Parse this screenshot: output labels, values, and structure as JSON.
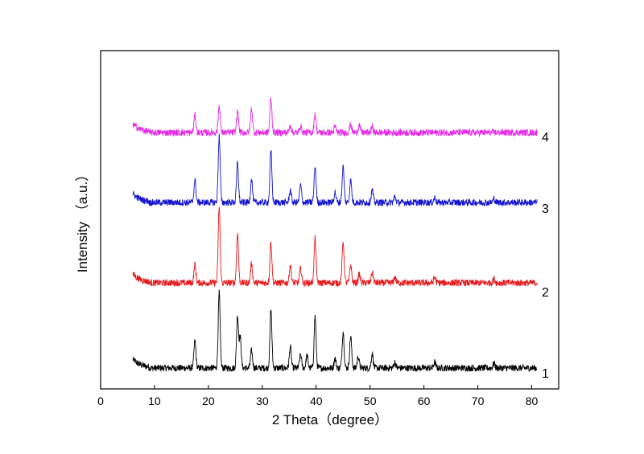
{
  "chart_data": {
    "type": "line",
    "xlabel": "2 Theta（degree）",
    "ylabel": "Intensity （a.u.）",
    "xlim": [
      0,
      85
    ],
    "xticks": [
      "0",
      "10",
      "20",
      "30",
      "40",
      "50",
      "60",
      "70",
      "80"
    ],
    "x_range": [
      6,
      81
    ],
    "y_axis_ticks": false,
    "grid": false,
    "legend": "none",
    "series": [
      {
        "name": "1",
        "color": "#000000",
        "baseline": 0.5,
        "noise": 0.35,
        "peaks": [
          [
            17.5,
            2.8
          ],
          [
            22.0,
            7.8
          ],
          [
            25.4,
            5.4
          ],
          [
            25.9,
            3.2
          ],
          [
            28.0,
            1.8
          ],
          [
            31.6,
            6.0
          ],
          [
            35.2,
            2.2
          ],
          [
            37.1,
            1.4
          ],
          [
            38.3,
            1.3
          ],
          [
            39.8,
            5.4
          ],
          [
            43.5,
            1.0
          ],
          [
            45.0,
            3.8
          ],
          [
            46.4,
            3.3
          ],
          [
            47.8,
            1.2
          ],
          [
            50.4,
            1.5
          ],
          [
            54.6,
            0.6
          ],
          [
            62.0,
            0.6
          ],
          [
            73.0,
            0.5
          ]
        ]
      },
      {
        "name": "2",
        "color": "#e6191c",
        "baseline": 0.5,
        "noise": 0.35,
        "peaks": [
          [
            17.5,
            1.9
          ],
          [
            22.0,
            7.9
          ],
          [
            25.4,
            5.2
          ],
          [
            28.0,
            2.0
          ],
          [
            31.6,
            4.2
          ],
          [
            35.2,
            1.8
          ],
          [
            37.1,
            1.5
          ],
          [
            39.8,
            4.6
          ],
          [
            45.0,
            4.3
          ],
          [
            46.4,
            1.9
          ],
          [
            48.0,
            0.9
          ],
          [
            50.4,
            1.1
          ],
          [
            54.6,
            0.6
          ],
          [
            62.0,
            0.6
          ],
          [
            73.0,
            0.4
          ]
        ]
      },
      {
        "name": "3",
        "color": "#1414d2",
        "baseline": 0.5,
        "noise": 0.35,
        "peaks": [
          [
            17.5,
            2.3
          ],
          [
            22.0,
            6.9
          ],
          [
            25.4,
            4.1
          ],
          [
            28.0,
            2.4
          ],
          [
            31.6,
            5.3
          ],
          [
            35.2,
            1.3
          ],
          [
            37.1,
            1.8
          ],
          [
            39.8,
            3.7
          ],
          [
            43.5,
            1.1
          ],
          [
            45.0,
            3.7
          ],
          [
            46.4,
            2.3
          ],
          [
            50.4,
            1.3
          ],
          [
            54.6,
            0.6
          ],
          [
            62.0,
            0.5
          ],
          [
            73.0,
            0.4
          ]
        ]
      },
      {
        "name": "4",
        "color": "#e629e6",
        "baseline": 0.5,
        "noise": 0.35,
        "peaks": [
          [
            17.5,
            1.8
          ],
          [
            22.0,
            2.8
          ],
          [
            25.4,
            2.2
          ],
          [
            28.0,
            2.5
          ],
          [
            31.6,
            3.5
          ],
          [
            35.2,
            0.8
          ],
          [
            37.1,
            0.7
          ],
          [
            39.8,
            2.0
          ],
          [
            43.5,
            0.6
          ],
          [
            46.4,
            0.9
          ],
          [
            48.0,
            0.8
          ],
          [
            50.4,
            0.6
          ]
        ]
      }
    ]
  }
}
